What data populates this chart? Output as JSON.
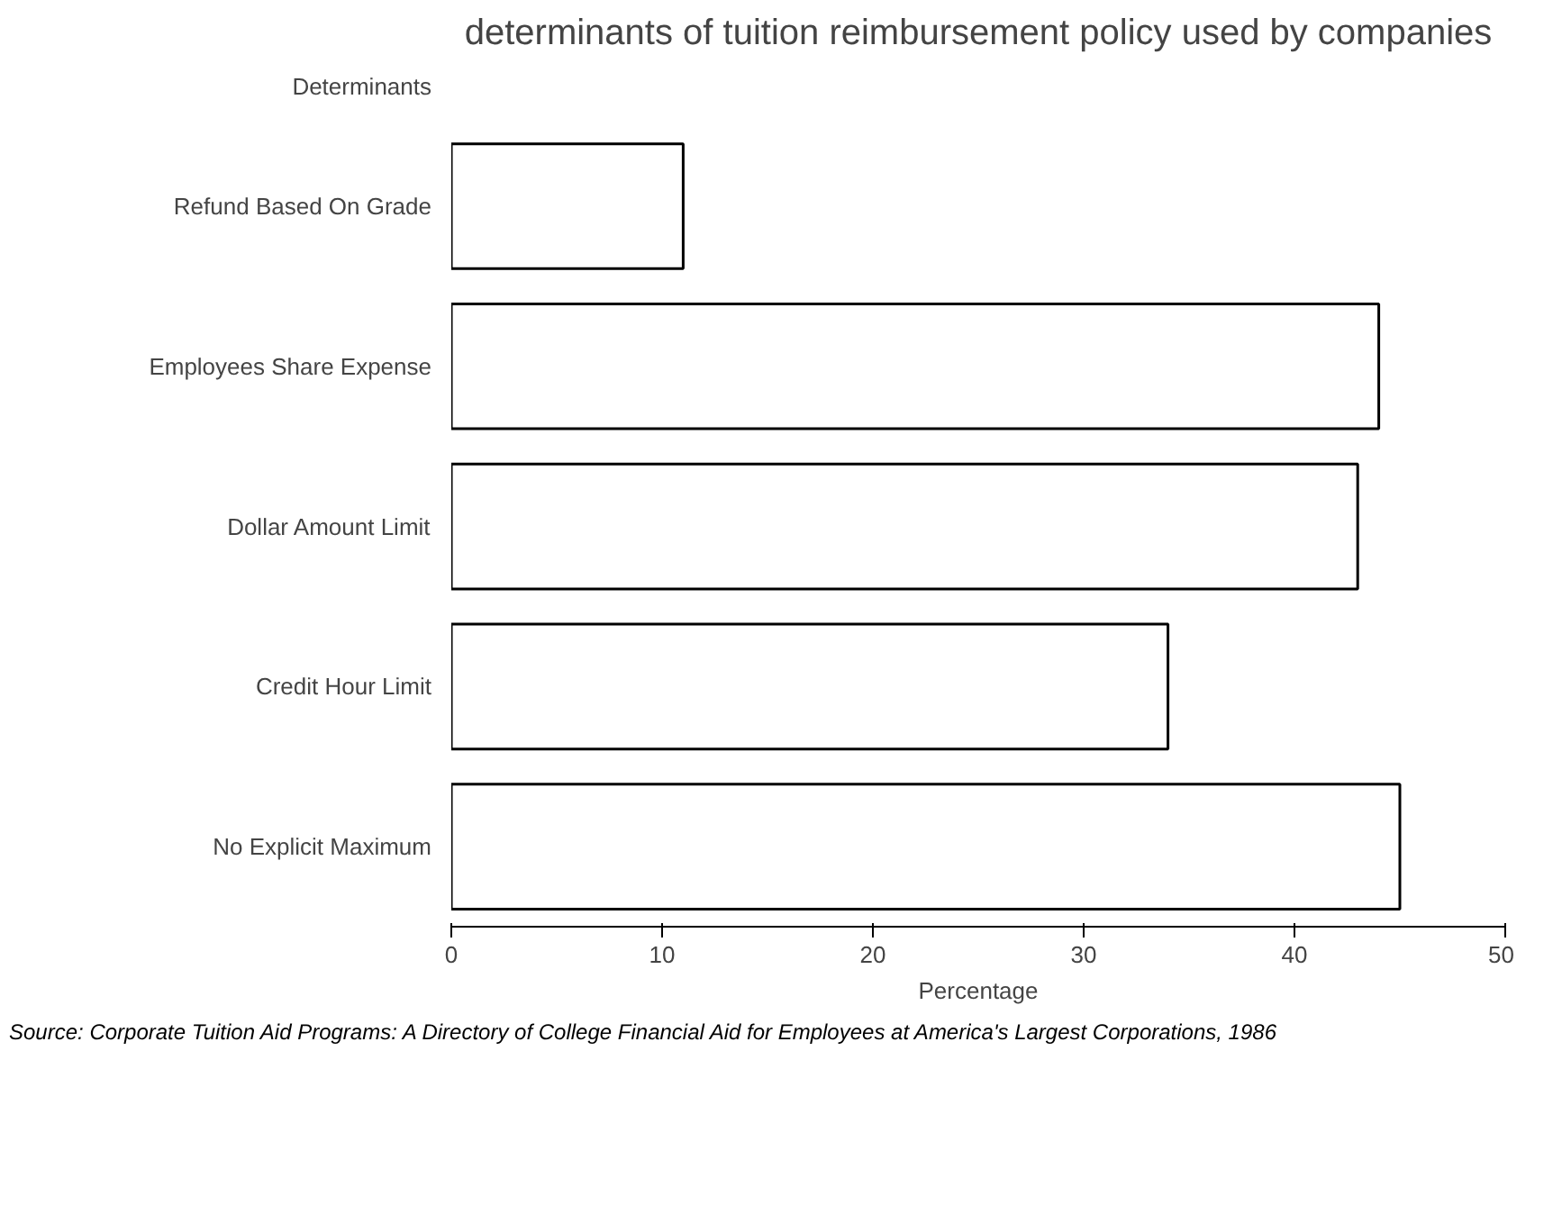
{
  "chart_data": {
    "type": "bar",
    "orientation": "horizontal",
    "title": "determinants of tuition reimbursement policy used by companies",
    "ylabel": "Determinants",
    "xlabel": "Percentage",
    "categories": [
      "Refund Based On Grade",
      "Employees Share Expense",
      "Dollar Amount Limit",
      "Credit Hour Limit",
      "No Explicit Maximum"
    ],
    "values": [
      11,
      44,
      43,
      34,
      45
    ],
    "color": "#ffffff",
    "xlim": [
      0,
      50
    ],
    "xticks": [
      0,
      10,
      20,
      30,
      40,
      50
    ],
    "grid": false,
    "annotations": [
      "Source: Corporate Tuition Aid Programs: A Directory of College Financial Aid for Employees at America's Largest Corporations, 1986"
    ]
  }
}
